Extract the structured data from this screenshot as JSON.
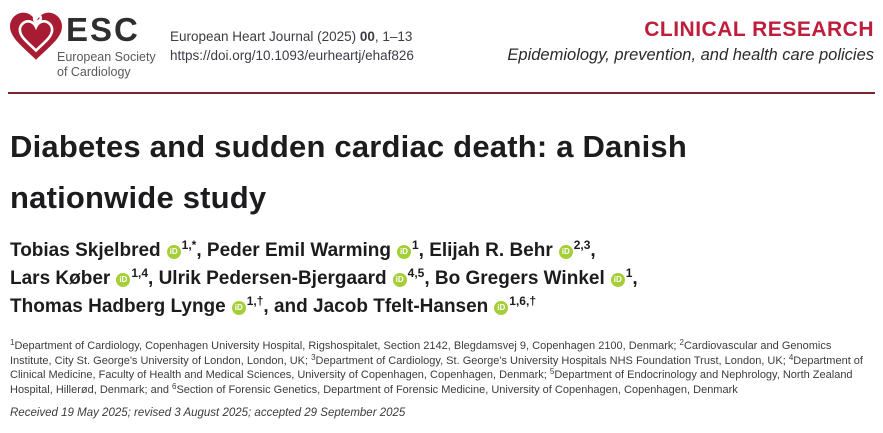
{
  "colors": {
    "accent_red": "#be1e3c",
    "rule_red": "#7a2433",
    "heart_red": "#a81c33",
    "orcid_green": "#a6ce39",
    "text_dark": "#1c1c1e"
  },
  "header": {
    "logo": {
      "acronym": "ESC",
      "society_line1": "European Society",
      "society_line2": "of Cardiology"
    },
    "citation": {
      "prefix": "European Heart Journal (2025) ",
      "volume": "00",
      "pages": ", 1–13"
    },
    "doi": "https://doi.org/10.1093/eurheartj/ehaf826",
    "section_label": "CLINICAL RESEARCH",
    "section_subtitle": "Epidemiology, prevention, and health care policies"
  },
  "article": {
    "title_line1": "Diabetes and sudden cardiac death: a Danish",
    "title_line2": "nationwide study",
    "author_lines": [
      [
        {
          "pre": "",
          "name": "Tobias Skjelbred",
          "sup": "1,*",
          "post": ","
        },
        {
          "pre": " ",
          "name": "Peder Emil Warming",
          "sup": "1",
          "post": ","
        },
        {
          "pre": " ",
          "name": "Elijah R. Behr",
          "sup": "2,3",
          "post": ","
        }
      ],
      [
        {
          "pre": "",
          "name": "Lars Køber",
          "sup": "1,4",
          "post": ","
        },
        {
          "pre": " ",
          "name": "Ulrik Pedersen-Bjergaard",
          "sup": "4,5",
          "post": ","
        },
        {
          "pre": " ",
          "name": "Bo Gregers Winkel",
          "sup": "1",
          "post": ","
        }
      ],
      [
        {
          "pre": "",
          "name": "Thomas Hadberg Lynge",
          "sup": "1,†",
          "post": ","
        },
        {
          "pre": " and ",
          "name": "Jacob Tfelt-Hansen",
          "sup": "1,6,†",
          "post": ""
        }
      ]
    ],
    "affiliations": [
      {
        "sup": "1",
        "text": "Department of Cardiology, Copenhagen University Hospital, Rigshospitalet, Section 2142, Blegdamsvej 9, Copenhagen 2100, Denmark; "
      },
      {
        "sup": "2",
        "text": "Cardiovascular and Genomics Institute, City St. George's University of London, London, UK; "
      },
      {
        "sup": "3",
        "text": "Department of Cardiology, St. George's University Hospitals NHS Foundation Trust, London, UK; "
      },
      {
        "sup": "4",
        "text": "Department of Clinical Medicine, Faculty of Health and Medical Sciences, University of Copenhagen, Copenhagen, Denmark; "
      },
      {
        "sup": "5",
        "text": "Department of Endocrinology and Nephrology, North Zealand Hospital, Hillerød, Denmark; and "
      },
      {
        "sup": "6",
        "text": "Section of Forensic Genetics, Department of Forensic Medicine, University of Copenhagen, Copenhagen, Denmark"
      }
    ],
    "received_line": "Received 19 May 2025; revised 3 August 2025; accepted 29 September 2025"
  }
}
